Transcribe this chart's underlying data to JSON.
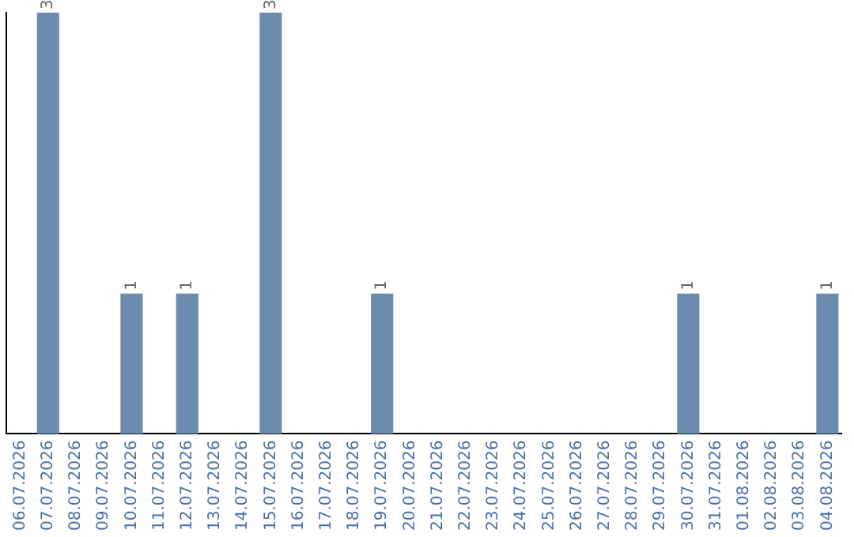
{
  "chart_data": {
    "type": "bar",
    "categories": [
      "06.07.2026",
      "07.07.2026",
      "08.07.2026",
      "09.07.2026",
      "10.07.2026",
      "11.07.2026",
      "12.07.2026",
      "13.07.2026",
      "14.07.2026",
      "15.07.2026",
      "16.07.2026",
      "17.07.2026",
      "18.07.2026",
      "19.07.2026",
      "20.07.2026",
      "21.07.2026",
      "22.07.2026",
      "23.07.2026",
      "24.07.2026",
      "25.07.2026",
      "26.07.2026",
      "27.07.2026",
      "28.07.2026",
      "29.07.2026",
      "30.07.2026",
      "31.07.2026",
      "01.08.2026",
      "02.08.2026",
      "03.08.2026",
      "04.08.2026"
    ],
    "values": [
      0,
      3,
      0,
      0,
      1,
      0,
      1,
      0,
      0,
      3,
      0,
      0,
      0,
      1,
      0,
      0,
      0,
      0,
      0,
      0,
      0,
      0,
      0,
      0,
      1,
      0,
      0,
      0,
      0,
      1
    ],
    "value_labels": [
      null,
      "3",
      null,
      null,
      "1",
      null,
      "1",
      null,
      null,
      "3",
      null,
      null,
      null,
      "1",
      null,
      null,
      null,
      null,
      null,
      null,
      null,
      null,
      null,
      null,
      "1",
      null,
      null,
      null,
      null,
      "1"
    ],
    "color": "#6b8cae",
    "tick_labels": "x",
    "grid": false,
    "legend": false
  }
}
